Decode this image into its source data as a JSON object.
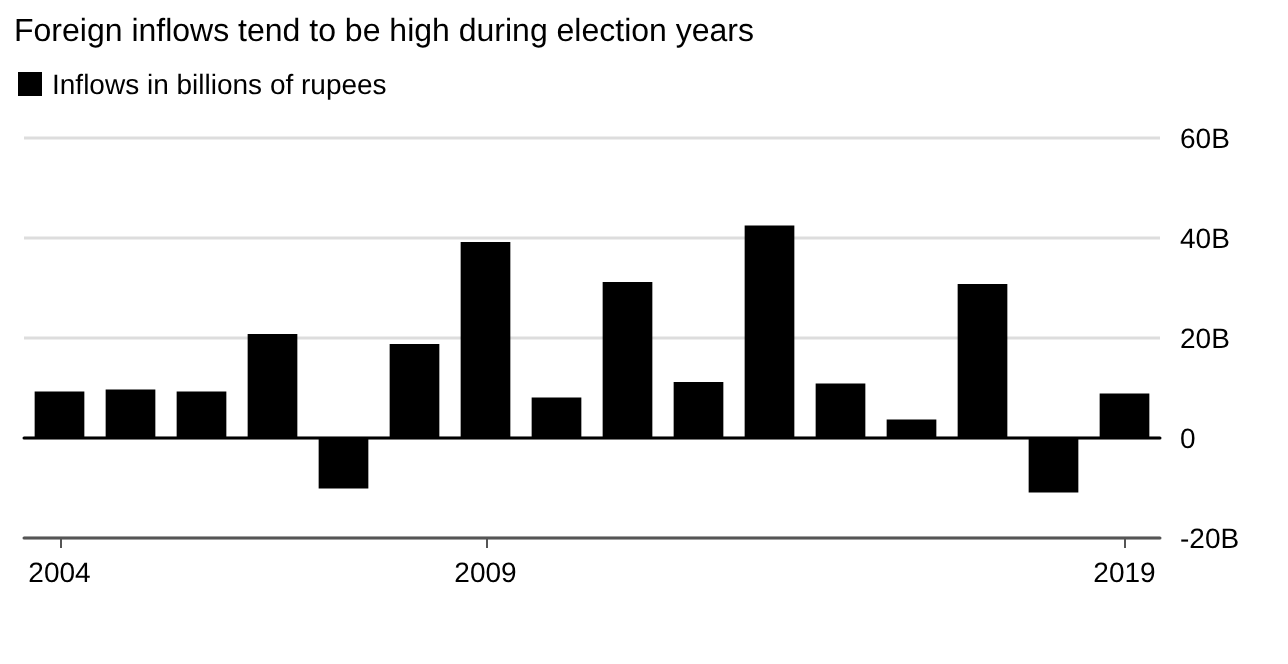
{
  "chart_data": {
    "type": "bar",
    "title": "Foreign inflows tend to be high during election years",
    "categories": [
      "2004",
      null,
      null,
      null,
      null,
      null,
      "2009",
      null,
      null,
      null,
      null,
      null,
      null,
      null,
      null,
      "2019"
    ],
    "series": [
      {
        "name": "Inflows in billions of rupees",
        "color": "#000000",
        "values": [
          9.3,
          9.7,
          9.3,
          20.8,
          -10.1,
          18.8,
          39.2,
          8.1,
          31.2,
          11.2,
          42.5,
          10.9,
          3.7,
          30.8,
          -10.9,
          8.9
        ]
      }
    ],
    "ylim": [
      -20,
      60
    ],
    "yticks": [
      {
        "value": -20,
        "label": "-20B"
      },
      {
        "value": 0,
        "label": "0"
      },
      {
        "value": 20,
        "label": "20B"
      },
      {
        "value": 40,
        "label": "40B"
      },
      {
        "value": 60,
        "label": "60B"
      }
    ],
    "grid": "y",
    "legend": "top left"
  }
}
